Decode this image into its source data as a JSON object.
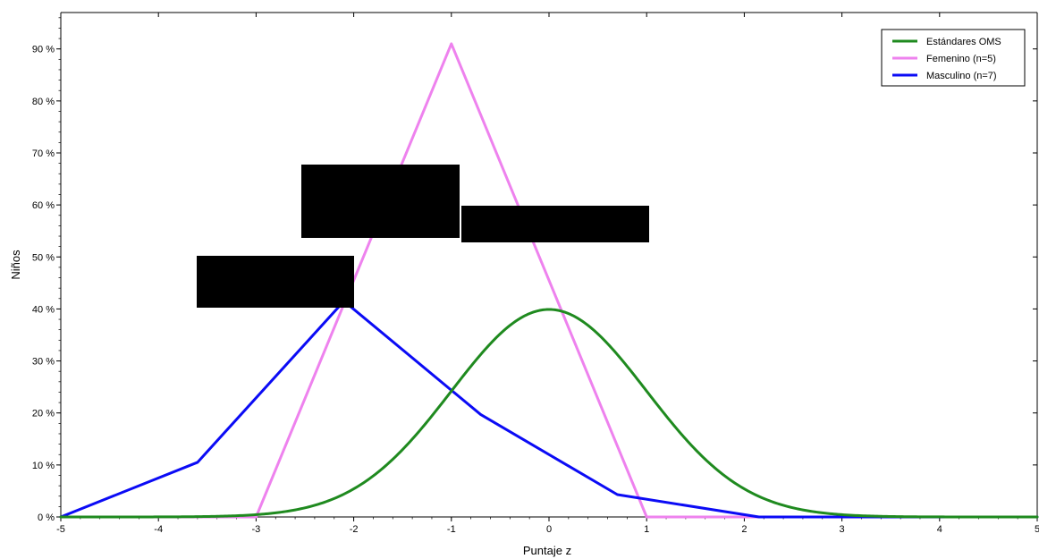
{
  "chart_data": {
    "type": "line",
    "title": "",
    "xlabel": "Puntaje z",
    "ylabel": "Niños",
    "xlim": [
      -5,
      5
    ],
    "ylim": [
      0,
      97
    ],
    "x_ticks": [
      -5,
      -4,
      -3,
      -2,
      -1,
      0,
      1,
      2,
      3,
      4,
      5
    ],
    "y_ticks": [
      0,
      10,
      20,
      30,
      40,
      50,
      60,
      70,
      80,
      90
    ],
    "y_tick_suffix": " %",
    "grid": false,
    "legend_position": "top-right",
    "series": [
      {
        "name": "Estándares OMS",
        "color": "#1f8a1f",
        "kind": "normal_curve",
        "mean": 0,
        "sd": 1,
        "peak": 39.9
      },
      {
        "name": "Femenino (n=5)",
        "color": "#ee82ee",
        "points": [
          [
            -5,
            0
          ],
          [
            -3,
            0
          ],
          [
            -1,
            91
          ],
          [
            1,
            0
          ],
          [
            5,
            0
          ]
        ]
      },
      {
        "name": "Masculino (n=7)",
        "color": "#0b0bf5",
        "points": [
          [
            -5,
            0
          ],
          [
            -3.6,
            10.5
          ],
          [
            -2.1,
            41.5
          ],
          [
            -0.7,
            19.7
          ],
          [
            0.7,
            4.3
          ],
          [
            2.15,
            0
          ],
          [
            5,
            0
          ]
        ]
      }
    ]
  }
}
